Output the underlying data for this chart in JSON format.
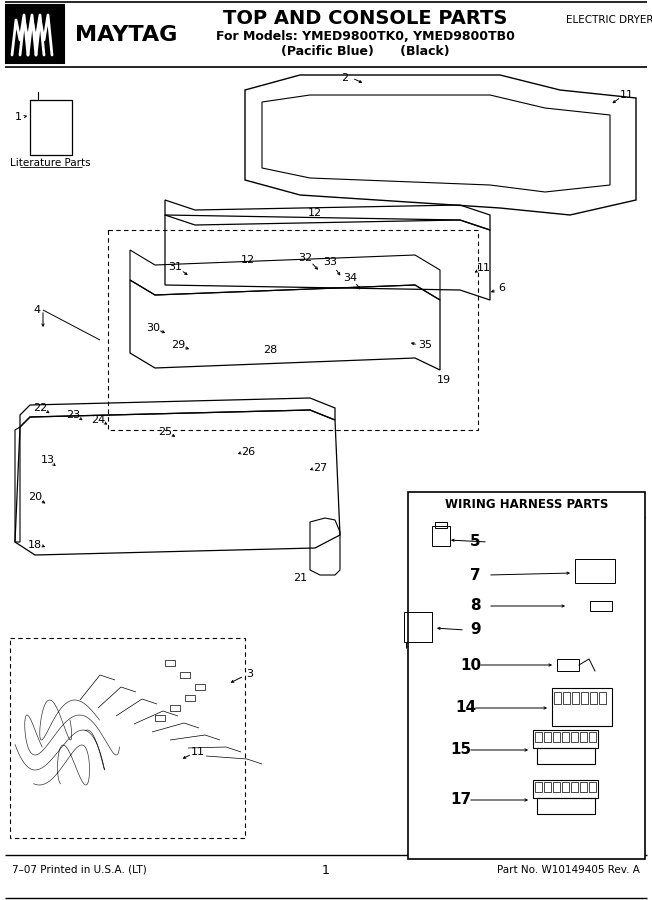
{
  "title": "TOP AND CONSOLE PARTS",
  "subtitle1": "For Models: YMED9800TK0, YMED9800TB0",
  "subtitle2": "(Pacific Blue)      (Black)",
  "top_right_text": "ELECTRIC DRYER",
  "bottom_left": "7–07 Printed in U.S.A. (LT)",
  "bottom_center": "1",
  "bottom_right": "Part No. W10149405 Rev. A",
  "wiring_box_title": "WIRING HARNESS PARTS",
  "bg_color": "#ffffff",
  "literature_parts_label": "Literature Parts"
}
